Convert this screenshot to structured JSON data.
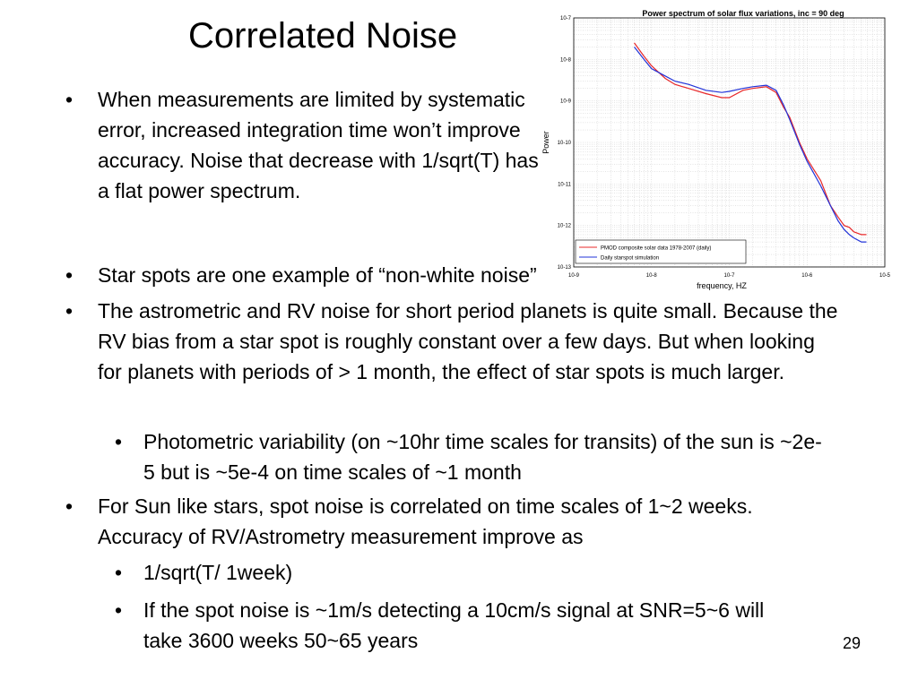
{
  "slide": {
    "title": "Correlated Noise",
    "page_number": "29",
    "bullets": [
      {
        "level": 1,
        "text": "When measurements are limited by systematic error, increased integration time won’t improve accuracy. Noise that decrease with 1/sqrt(T) has a flat power spectrum."
      },
      {
        "level": 1,
        "text": "Star spots are one example of “non-white noise”"
      },
      {
        "level": 1,
        "text": "The astrometric and RV noise for short period planets is quite small. Because the RV bias from a star spot is roughly constant over a few days. But  when looking for planets with periods of > 1 month, the effect of star spots is much larger."
      },
      {
        "level": 2,
        "text": "Photometric variability (on ~10hr time scales for transits) of the sun is ~2e-5 but  is ~5e-4 on time scales of ~1 month"
      },
      {
        "level": 1,
        "text": "For Sun like stars, spot noise is correlated on time scales of 1~2 weeks. Accuracy of RV/Astrometry measurement improve as"
      },
      {
        "level": 2,
        "text": "1/sqrt(T/ 1week)"
      },
      {
        "level": 2,
        "text": "If the spot noise is ~1m/s detecting a 10cm/s signal at SNR=5~6 will take 3600 weeks 50~65 years"
      }
    ]
  },
  "chart_data": {
    "type": "line",
    "title": "Power spectrum of solar flux variations, inc = 90 deg",
    "xlabel": "frequency, HZ",
    "ylabel": "Power",
    "xscale": "log",
    "yscale": "log",
    "xlim": [
      1e-09,
      1e-05
    ],
    "ylim": [
      1e-13,
      1e-07
    ],
    "grid": true,
    "legend_position": "bottom-left",
    "x_tick_labels": [
      "10-9",
      "10-8",
      "10-7",
      "10-6",
      "10-5"
    ],
    "y_tick_labels": [
      "10-7",
      "10-8",
      "10-9",
      "10-10",
      "10-11",
      "10-12",
      "10-13"
    ],
    "series": [
      {
        "name": "PMOD composite solar data 1978-2007 (daily)",
        "color": "#e8282a",
        "x": [
          6e-09,
          8e-09,
          1e-08,
          1.5e-08,
          2e-08,
          3e-08,
          5e-08,
          8e-08,
          1e-07,
          1.5e-07,
          2e-07,
          3e-07,
          4e-07,
          5e-07,
          6e-07,
          8e-07,
          1e-06,
          1.5e-06,
          2e-06,
          2.5e-06,
          3e-06,
          3.5e-06,
          4e-06,
          5e-06,
          5.8e-06
        ],
        "y": [
          2.5e-08,
          1.2e-08,
          7e-09,
          3.5e-09,
          2.5e-09,
          2e-09,
          1.5e-09,
          1.2e-09,
          1.2e-09,
          1.8e-09,
          2e-09,
          2.2e-09,
          1.6e-09,
          7e-10,
          4e-10,
          1e-10,
          4e-11,
          1.2e-11,
          3e-12,
          1.6e-12,
          1e-12,
          9e-13,
          7e-13,
          6e-13,
          6e-13
        ]
      },
      {
        "name": "Daily starspot simulation",
        "color": "#2233d8",
        "x": [
          6e-09,
          8e-09,
          1e-08,
          1.5e-08,
          2e-08,
          3e-08,
          5e-08,
          8e-08,
          1e-07,
          1.5e-07,
          2e-07,
          3e-07,
          4e-07,
          5e-07,
          6e-07,
          8e-07,
          1e-06,
          1.5e-06,
          2e-06,
          2.5e-06,
          3e-06,
          3.5e-06,
          4e-06,
          5e-06,
          5.8e-06
        ],
        "y": [
          2e-08,
          1e-08,
          6e-09,
          4e-09,
          3e-09,
          2.5e-09,
          1.8e-09,
          1.6e-09,
          1.7e-09,
          2e-09,
          2.2e-09,
          2.4e-09,
          1.8e-09,
          8e-10,
          3.5e-10,
          9e-11,
          3.5e-11,
          9e-12,
          3e-12,
          1.3e-12,
          8e-13,
          6e-13,
          5e-13,
          4e-13,
          4e-13
        ]
      }
    ]
  }
}
